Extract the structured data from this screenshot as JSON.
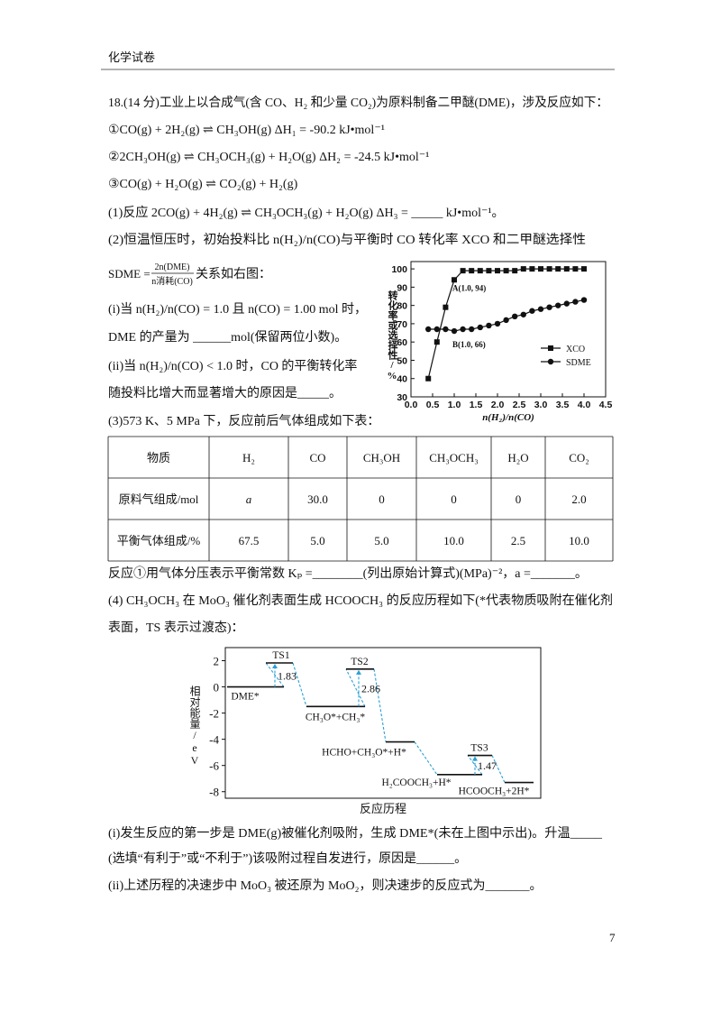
{
  "header": {
    "title": "化学试卷"
  },
  "question": {
    "lines_top": [
      "18.(14 分)工业上以合成气(含 CO、H₂ 和少量 CO₂)为原料制备二甲醚(DME)，涉及反应如下：",
      "①CO(g) + 2H₂(g) ⇌ CH₃OH(g)    ΔH₁ = -90.2 kJ•mol⁻¹",
      "②2CH₃OH(g) ⇌ CH₃OCH₃(g) + H₂O(g)    ΔH₂ = -24.5 kJ•mol⁻¹",
      "③CO(g) + H₂O(g) ⇌ CO₂(g) + H₂(g)",
      "(1)反应 2CO(g) + 4H₂(g) ⇌ CH₃OCH₃(g) + H₂O(g)  ΔH₃ = _____  kJ•mol⁻¹。",
      "(2)恒温恒压时，初始投料比 n(H₂)/n(CO)与平衡时 CO 转化率 XCO 和二甲醚选择性"
    ],
    "sdme": {
      "lhs": "SDME =",
      "numerator": "2n(DME)",
      "denominator": "n消耗(CO)",
      "rhs": "关系如右图："
    },
    "lines_left": [
      "(i)当 n(H₂)/n(CO) = 1.0 且 n(CO) = 1.00 mol 时，",
      "DME 的产量为 ______mol(保留两位小数)。",
      "(ii)当 n(H₂)/n(CO) < 1.0 时，CO 的平衡转化率",
      "随投料比增大而显著增大的原因是_____。"
    ],
    "table_intro": "(3)573 K、5 MPa 下，反应前后气体组成如下表：",
    "table": {
      "header": [
        "物质",
        "H₂",
        "CO",
        "CH₃OH",
        "CH₃OCH₃",
        "H₂O",
        "CO₂"
      ],
      "rows": [
        [
          "原料气组成/mol",
          "a",
          "30.0",
          "0",
          "0",
          "0",
          "2.0"
        ],
        [
          "平衡气体组成/%",
          "67.5",
          "5.0",
          "5.0",
          "10.0",
          "2.5",
          "10.0"
        ]
      ]
    },
    "lines_mid": [
      "反应①用气体分压表示平衡常数 Kₚ =________(列出原始计算式)(MPa)⁻²，a =_______。",
      "(4) CH₃OCH₃ 在 MoO₃ 催化剂表面生成 HCOOCH₃ 的反应历程如下(*代表物质吸附在催化剂",
      "表面，TS 表示过渡态)："
    ],
    "lines_bottom": [
      "(i)发生反应的第一步是 DME(g)被催化剂吸附，生成 DME*(未在上图中示出)。升温_____",
      "(选填“有利于”或“不利于”)该吸附过程自发进行，原因是______。",
      "(ii)上述历程的决速步中 MoO₃ 被还原为 MoO₂，则决速步的反应式为_______。"
    ]
  },
  "chart_data": [
    {
      "type": "line",
      "xlabel": "n(H₂)/n(CO)",
      "ylabel": "转化率或选择性/%",
      "x": [
        0.4,
        0.6,
        0.8,
        1.0,
        1.2,
        1.4,
        1.6,
        1.8,
        2.0,
        2.2,
        2.4,
        2.6,
        2.8,
        3.0,
        3.2,
        3.4,
        3.6,
        3.8,
        4.0
      ],
      "series": [
        {
          "name": "XCO",
          "color": "#111111",
          "marker": "square",
          "values": [
            40,
            60,
            79,
            94,
            99,
            99,
            99,
            99,
            99,
            99,
            99,
            100,
            100,
            100,
            100,
            100,
            100,
            100,
            100
          ]
        },
        {
          "name": "SDME",
          "color": "#111111",
          "marker": "circle",
          "values": [
            67,
            67,
            67,
            66,
            67,
            67,
            68,
            69,
            70,
            72,
            74,
            75,
            77,
            78,
            79,
            80,
            81,
            82,
            83
          ]
        }
      ],
      "annotations": [
        "A(1.0, 94)",
        "B(1.0, 66)"
      ],
      "xlim": [
        0,
        4.5
      ],
      "xticks": [
        {
          "value": 0,
          "label": "0.0"
        },
        0.5,
        {
          "value": 1,
          "label": "1.0"
        },
        1.5,
        {
          "value": 2,
          "label": "2.0"
        },
        2.5,
        {
          "value": 3,
          "label": "3.0"
        },
        3.5,
        {
          "value": 4,
          "label": "4.0"
        },
        4.5
      ],
      "ylim": [
        30,
        104
      ],
      "yticks": [
        30,
        40,
        50,
        60,
        70,
        80,
        90,
        100
      ],
      "legend": "lower right"
    },
    {
      "type": "energy",
      "xlabel": "反应历程",
      "ylabel": "相对能量/eV",
      "categories": [
        "DME*",
        "TS1",
        "CH₃O*+CH₃*",
        "TS2",
        "HCHO+CH₃O*+H*",
        "H₂COOCH₃+H*",
        "TS3",
        "HCOOCH₃+2H*"
      ],
      "values": [
        0,
        1.83,
        -1.5,
        1.36,
        -4.2,
        -6.7,
        -5.23,
        -7.3
      ],
      "barriers": [
        1.83,
        2.86,
        1.47
      ],
      "color": "#111111",
      "connector_color": "#2a9fd6",
      "ylim": [
        -8.5,
        3
      ],
      "yticks": [
        -8,
        -6,
        -4,
        -2,
        0,
        2
      ]
    }
  ],
  "page_number": "7"
}
